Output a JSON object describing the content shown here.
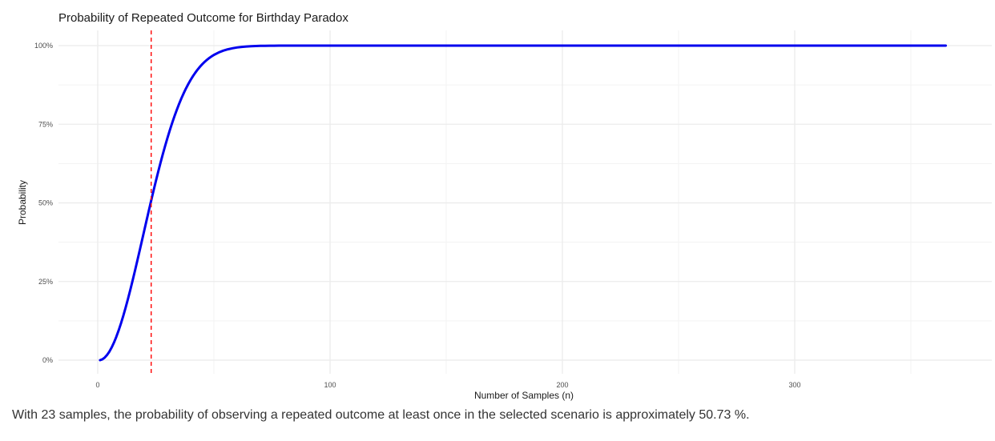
{
  "chart_data": {
    "type": "line",
    "title": "Probability of Repeated Outcome for Birthday Paradox",
    "xlabel": "Number of Samples (n)",
    "ylabel": "Probability",
    "xlim": [
      1,
      365
    ],
    "ylim": [
      0,
      1
    ],
    "x_ticks": [
      0,
      100,
      200,
      300
    ],
    "x_tick_labels": [
      "0",
      "100",
      "200",
      "300"
    ],
    "x_minor_ticks": [
      50,
      150,
      250,
      350
    ],
    "y_ticks": [
      0,
      0.25,
      0.5,
      0.75,
      1
    ],
    "y_tick_labels": [
      "0%",
      "25%",
      "50%",
      "75%",
      "100%"
    ],
    "y_minor_ticks": [
      0.125,
      0.375,
      0.625,
      0.875
    ],
    "grid": true,
    "series": [
      {
        "color": "#0000EE",
        "x": [
          1,
          2,
          3,
          4,
          5,
          6,
          7,
          8,
          9,
          10,
          11,
          12,
          13,
          14,
          15,
          16,
          17,
          18,
          19,
          20,
          21,
          22,
          23,
          24,
          25,
          26,
          27,
          28,
          29,
          30,
          31,
          32,
          33,
          34,
          35,
          36,
          37,
          38,
          39,
          40,
          41,
          42,
          43,
          44,
          45,
          46,
          47,
          48,
          49,
          50,
          52,
          54,
          56,
          58,
          60,
          62,
          64,
          66,
          68,
          70,
          72,
          74,
          76,
          78,
          80,
          85,
          90,
          100,
          120,
          150,
          200,
          250,
          300,
          365
        ],
        "y": [
          0,
          0.0027,
          0.0082,
          0.0164,
          0.0271,
          0.0405,
          0.0562,
          0.0743,
          0.0946,
          0.1169,
          0.1411,
          0.167,
          0.1944,
          0.2231,
          0.2529,
          0.2836,
          0.315,
          0.3469,
          0.3791,
          0.4114,
          0.4437,
          0.4757,
          0.5073,
          0.5383,
          0.5687,
          0.5982,
          0.6269,
          0.6545,
          0.681,
          0.7063,
          0.7305,
          0.7533,
          0.775,
          0.7953,
          0.8144,
          0.8322,
          0.8487,
          0.8641,
          0.8782,
          0.8912,
          0.9032,
          0.914,
          0.9239,
          0.9329,
          0.941,
          0.9483,
          0.9548,
          0.9606,
          0.9658,
          0.9704,
          0.978,
          0.9839,
          0.9883,
          0.9916,
          0.9941,
          0.9959,
          0.9971,
          0.998,
          0.9987,
          0.9992,
          0.9994,
          0.9996,
          0.9998,
          0.9999,
          0.9999,
          1,
          1,
          1,
          1,
          1,
          1,
          1,
          1,
          1
        ]
      }
    ],
    "annotations": [
      {
        "type": "vline",
        "x": 23,
        "color": "#FF0000",
        "style": "dashed"
      }
    ]
  },
  "caption": "With 23 samples, the probability of observing a repeated outcome at least once in the selected scenario is approximately 50.73 %."
}
